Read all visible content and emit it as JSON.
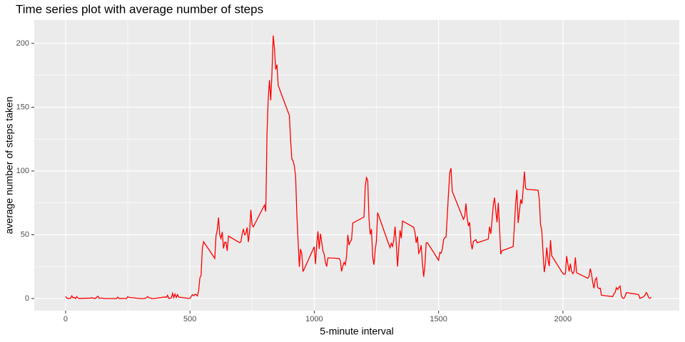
{
  "chart_data": {
    "type": "line",
    "title": "Time series plot with average number of steps",
    "xlabel": "5-minute interval",
    "ylabel": "average number of steps taken",
    "x": [
      0,
      5,
      10,
      15,
      20,
      25,
      30,
      35,
      40,
      45,
      50,
      55,
      100,
      105,
      110,
      115,
      120,
      125,
      130,
      135,
      140,
      145,
      150,
      155,
      200,
      205,
      210,
      215,
      220,
      225,
      230,
      235,
      240,
      245,
      250,
      255,
      300,
      305,
      310,
      315,
      320,
      325,
      330,
      335,
      340,
      345,
      350,
      355,
      400,
      405,
      410,
      415,
      420,
      425,
      430,
      435,
      440,
      445,
      450,
      455,
      500,
      505,
      510,
      515,
      520,
      525,
      530,
      535,
      540,
      545,
      550,
      555,
      600,
      605,
      610,
      615,
      620,
      625,
      630,
      635,
      640,
      645,
      650,
      655,
      700,
      705,
      710,
      715,
      720,
      725,
      730,
      735,
      740,
      745,
      750,
      755,
      800,
      805,
      810,
      815,
      820,
      825,
      830,
      835,
      840,
      845,
      850,
      855,
      900,
      905,
      910,
      915,
      920,
      925,
      930,
      935,
      940,
      945,
      950,
      955,
      1000,
      1005,
      1010,
      1015,
      1020,
      1025,
      1030,
      1035,
      1040,
      1045,
      1050,
      1055,
      1100,
      1105,
      1110,
      1115,
      1120,
      1125,
      1130,
      1135,
      1140,
      1145,
      1150,
      1155,
      1200,
      1205,
      1210,
      1215,
      1220,
      1225,
      1230,
      1235,
      1240,
      1245,
      1250,
      1255,
      1300,
      1305,
      1310,
      1315,
      1320,
      1325,
      1330,
      1335,
      1340,
      1345,
      1350,
      1355,
      1400,
      1405,
      1410,
      1415,
      1420,
      1425,
      1430,
      1435,
      1440,
      1445,
      1450,
      1455,
      1500,
      1505,
      1510,
      1515,
      1520,
      1525,
      1530,
      1535,
      1540,
      1545,
      1550,
      1555,
      1600,
      1605,
      1610,
      1615,
      1620,
      1625,
      1630,
      1635,
      1640,
      1645,
      1650,
      1655,
      1700,
      1705,
      1710,
      1715,
      1720,
      1725,
      1730,
      1735,
      1740,
      1745,
      1750,
      1755,
      1800,
      1805,
      1810,
      1815,
      1820,
      1825,
      1830,
      1835,
      1840,
      1845,
      1850,
      1855,
      1900,
      1905,
      1910,
      1915,
      1920,
      1925,
      1930,
      1935,
      1940,
      1945,
      1950,
      1955,
      2000,
      2005,
      2010,
      2015,
      2020,
      2025,
      2030,
      2035,
      2040,
      2045,
      2050,
      2055,
      2100,
      2105,
      2110,
      2115,
      2120,
      2125,
      2130,
      2135,
      2140,
      2145,
      2150,
      2155,
      2200,
      2205,
      2210,
      2215,
      2220,
      2225,
      2230,
      2235,
      2240,
      2245,
      2250,
      2255,
      2300,
      2305,
      2310,
      2315,
      2320,
      2325,
      2330,
      2335,
      2340,
      2345,
      2350,
      2355
    ],
    "series": [
      {
        "color": "#ff0000",
        "values": [
          1.7,
          0.3,
          0.1,
          0.2,
          0.1,
          2.1,
          0.5,
          0.9,
          0,
          1.5,
          0.3,
          0.1,
          0.3,
          0.7,
          0.2,
          0.3,
          0,
          1.1,
          1.8,
          0.2,
          0.2,
          0.4,
          0.3,
          0,
          0,
          0,
          1.1,
          0,
          0,
          0.1,
          0,
          0.2,
          0,
          0,
          1.5,
          0.9,
          0,
          0,
          0,
          0,
          0.2,
          0.6,
          1.6,
          0.6,
          0.5,
          0.1,
          0,
          0,
          1.2,
          0.9,
          2.6,
          0,
          0.3,
          0.4,
          4.1,
          0.7,
          3.5,
          0.8,
          3.1,
          1.1,
          0,
          1.6,
          3,
          2.2,
          3.3,
          3,
          2.1,
          6.1,
          16,
          18.3,
          39.5,
          44.5,
          31.5,
          49.3,
          53.8,
          63.5,
          50,
          47.1,
          52.2,
          39.3,
          44,
          44.2,
          37.4,
          49,
          43.8,
          44.4,
          50.5,
          54.5,
          49.9,
          51,
          55.7,
          44.3,
          52.3,
          69.5,
          57.8,
          56.2,
          73.4,
          68.2,
          129.4,
          157.5,
          171.2,
          155.4,
          177.3,
          206.2,
          195.9,
          179.6,
          183.4,
          167,
          143.5,
          124,
          109.1,
          108.1,
          103.7,
          95.9,
          66.2,
          45.2,
          24.8,
          38.8,
          35,
          21.1,
          40.6,
          27,
          42.4,
          52.7,
          38.9,
          50.8,
          44.3,
          37.4,
          34.7,
          28.3,
          25.1,
          31.9,
          31.4,
          29.7,
          21.3,
          25.5,
          28.4,
          26.5,
          33.4,
          50,
          42,
          44.6,
          46,
          59.2,
          63.9,
          87.7,
          94.8,
          92.8,
          63.4,
          50.2,
          54.5,
          32.4,
          26.5,
          37.7,
          45.1,
          67.3,
          42.3,
          39.9,
          43.3,
          41,
          46.2,
          56.4,
          42.8,
          25.1,
          40,
          53.5,
          47.3,
          60.8,
          55.8,
          52,
          43.6,
          48.7,
          35.5,
          37.5,
          41.8,
          27.5,
          17.1,
          26.1,
          43.6,
          43.8,
          30,
          36.1,
          35.5,
          38.8,
          46,
          47.8,
          48.1,
          65.3,
          82.9,
          98.7,
          102.1,
          84,
          62.1,
          64.1,
          74.5,
          63.2,
          56.9,
          59.8,
          43.9,
          38.6,
          44.7,
          45.5,
          46.2,
          43.7,
          46.6,
          56.3,
          50.7,
          61.2,
          73.4,
          79.1,
          68.9,
          59.7,
          75.1,
          56.5,
          34.8,
          37.5,
          40.7,
          58,
          74.7,
          85.3,
          59.3,
          67.8,
          77.7,
          74.2,
          85.3,
          99.5,
          86.6,
          85.6,
          84.9,
          77.8,
          58,
          53.4,
          36.3,
          20.7,
          27.4,
          40,
          30.2,
          25.5,
          45.7,
          33.5,
          19.6,
          19,
          19.3,
          33.3,
          26.8,
          21.2,
          27.3,
          21.3,
          19.5,
          21.3,
          32.3,
          20.2,
          15.9,
          17.2,
          23.5,
          19.2,
          12.5,
          8.1,
          14.7,
          16.3,
          8.7,
          7.8,
          8.1,
          2.6,
          1.5,
          3.7,
          4.8,
          8.5,
          7.1,
          8.7,
          9.8,
          2.2,
          0.3,
          0.1,
          1.6,
          4.6,
          3.3,
          2.8,
          0,
          0.8,
          1,
          1.6,
          2.6,
          4.7,
          3.3,
          0.6,
          0.2,
          1.1
        ]
      }
    ],
    "xlim": [
      -126,
      2468
    ],
    "ylim": [
      -9.5,
      218.4
    ],
    "xticks": [
      0,
      500,
      1000,
      1500,
      2000
    ],
    "yticks": [
      0,
      50,
      100,
      150,
      200
    ],
    "xminorticks": [
      250,
      750,
      1250,
      1750,
      2250
    ],
    "yminorticks": [
      25,
      75,
      125,
      175
    ],
    "grid": true
  }
}
